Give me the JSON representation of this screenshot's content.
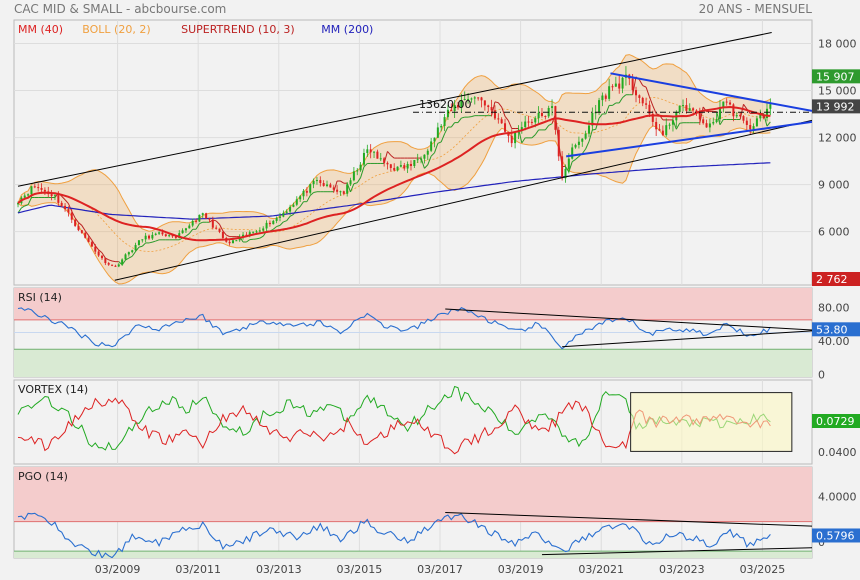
{
  "header": {
    "title": "CAC MID & SMALL - abcbourse.com",
    "period": "20 ANS - MENSUEL"
  },
  "colors": {
    "ma40": "#dd2222",
    "boll": "#f0a040",
    "supertrend": "#bb2222",
    "ma200": "#2222bb",
    "up": "#22aa22",
    "down": "#dd2222",
    "rsi": "#2a6fd0",
    "pgo": "#2a6fd0",
    "vortex_pos": "#22aa22",
    "vortex_neg": "#dd2222",
    "blue_line": "#1a3fe0",
    "price_badge_green": "#2e9a2e",
    "price_badge_gray": "#444444",
    "price_badge_red": "#cc2222",
    "zone_high": "#f4cccc",
    "zone_low": "#d9ead3"
  },
  "chart_data": [
    {
      "type": "candlestick",
      "name": "main",
      "legend": [
        {
          "label": "MM (40)",
          "color": "#dd2222"
        },
        {
          "label": "BOLL (20, 2)",
          "color": "#f0a040"
        },
        {
          "label": "SUPERTREND (10, 3)",
          "color": "#bb2222"
        },
        {
          "label": "MM (200)",
          "color": "#2222bb"
        }
      ],
      "y_ticks": [
        "18 000",
        "15 000",
        "12 000",
        "9 000",
        "6 000"
      ],
      "y_tick_values": [
        18000,
        15000,
        12000,
        9000,
        6000
      ],
      "ylim": [
        2600,
        19500
      ],
      "x_ticks": [
        "03/2009",
        "03/2011",
        "03/2013",
        "03/2015",
        "03/2017",
        "03/2019",
        "03/2021",
        "03/2023",
        "03/2025"
      ],
      "x_tick_years": [
        2009.17,
        2011.17,
        2013.17,
        2015.17,
        2017.17,
        2019.17,
        2021.17,
        2023.17,
        2025.17
      ],
      "xlim": [
        2006.6,
        2026.4
      ],
      "level_label": "13620.00",
      "level_value": 13620,
      "price_badges": [
        {
          "text": "15 907",
          "value": 15907,
          "kind": "green"
        },
        {
          "text": "13 992",
          "value": 13992,
          "kind": "gray"
        },
        {
          "text": "2 762",
          "value": 2762,
          "kind": "red"
        }
      ],
      "price_anchors": [
        [
          2006.7,
          8000
        ],
        [
          2007.1,
          8900
        ],
        [
          2007.6,
          8300
        ],
        [
          2007.9,
          7300
        ],
        [
          2008.3,
          5800
        ],
        [
          2008.8,
          4200
        ],
        [
          2009.1,
          3700
        ],
        [
          2009.3,
          4300
        ],
        [
          2009.8,
          5600
        ],
        [
          2010.3,
          5900
        ],
        [
          2010.6,
          5500
        ],
        [
          2011.0,
          6600
        ],
        [
          2011.3,
          7100
        ],
        [
          2011.6,
          6200
        ],
        [
          2011.9,
          5200
        ],
        [
          2012.3,
          5700
        ],
        [
          2012.7,
          6200
        ],
        [
          2013.2,
          7000
        ],
        [
          2013.6,
          8000
        ],
        [
          2014.1,
          9200
        ],
        [
          2014.5,
          8700
        ],
        [
          2014.8,
          8500
        ],
        [
          2015.1,
          10000
        ],
        [
          2015.4,
          11300
        ],
        [
          2015.7,
          10500
        ],
        [
          2016.1,
          10000
        ],
        [
          2016.5,
          10300
        ],
        [
          2016.9,
          11500
        ],
        [
          2017.3,
          13300
        ],
        [
          2017.6,
          14100
        ],
        [
          2017.9,
          14700
        ],
        [
          2018.2,
          14400
        ],
        [
          2018.5,
          13600
        ],
        [
          2018.8,
          12300
        ],
        [
          2018.95,
          11800
        ],
        [
          2019.2,
          12900
        ],
        [
          2019.6,
          13300
        ],
        [
          2019.95,
          13800
        ],
        [
          2020.2,
          9500
        ],
        [
          2020.4,
          11000
        ],
        [
          2020.8,
          12300
        ],
        [
          2021.0,
          13800
        ],
        [
          2021.4,
          15200
        ],
        [
          2021.8,
          15700
        ],
        [
          2022.1,
          14700
        ],
        [
          2022.4,
          13200
        ],
        [
          2022.7,
          12100
        ],
        [
          2023.0,
          13600
        ],
        [
          2023.3,
          14000
        ],
        [
          2023.6,
          13200
        ],
        [
          2023.9,
          12600
        ],
        [
          2024.2,
          14400
        ],
        [
          2024.5,
          13500
        ],
        [
          2024.8,
          12600
        ],
        [
          2025.0,
          13000
        ],
        [
          2025.4,
          13992
        ]
      ],
      "ma200_anchors": [
        [
          2006.7,
          7200
        ],
        [
          2007.5,
          7700
        ],
        [
          2009.0,
          7100
        ],
        [
          2011.0,
          6800
        ],
        [
          2013.0,
          7000
        ],
        [
          2015.0,
          7700
        ],
        [
          2017.0,
          8500
        ],
        [
          2019.0,
          9200
        ],
        [
          2021.0,
          9700
        ],
        [
          2023.0,
          10100
        ],
        [
          2025.4,
          10400
        ]
      ],
      "trend_lines": [
        {
          "color": "#000000",
          "points": [
            [
              2006.7,
              8900
            ],
            [
              2025.4,
              18700
            ]
          ]
        },
        {
          "color": "#000000",
          "points": [
            [
              2009.1,
              2900
            ],
            [
              2026.4,
              13100
            ]
          ]
        },
        {
          "color": "#1a3fe0",
          "points": [
            [
              2021.4,
              16100
            ],
            [
              2026.4,
              13700
            ]
          ]
        },
        {
          "color": "#1a3fe0",
          "points": [
            [
              2020.3,
              10800
            ],
            [
              2026.4,
              13000
            ]
          ]
        }
      ]
    },
    {
      "type": "line",
      "name": "rsi",
      "label": "RSI (14)",
      "y_ticks": [
        "80.00",
        "40.00",
        "0"
      ],
      "y_tick_values": [
        80,
        40,
        0
      ],
      "ylim": [
        -3,
        103
      ],
      "zone_high": 65,
      "zone_low": 30,
      "current_badge": "53.80",
      "current_value": 53.8,
      "anchors": [
        [
          2006.7,
          80
        ],
        [
          2007.3,
          70
        ],
        [
          2008.0,
          55
        ],
        [
          2008.6,
          38
        ],
        [
          2009.1,
          34
        ],
        [
          2009.6,
          58
        ],
        [
          2010.2,
          55
        ],
        [
          2010.8,
          65
        ],
        [
          2011.3,
          69
        ],
        [
          2011.8,
          48
        ],
        [
          2012.4,
          58
        ],
        [
          2013.0,
          64
        ],
        [
          2013.6,
          58
        ],
        [
          2014.2,
          62
        ],
        [
          2014.7,
          50
        ],
        [
          2015.3,
          72
        ],
        [
          2015.8,
          58
        ],
        [
          2016.4,
          52
        ],
        [
          2016.9,
          64
        ],
        [
          2017.5,
          78
        ],
        [
          2017.9,
          75
        ],
        [
          2018.5,
          62
        ],
        [
          2019.0,
          50
        ],
        [
          2019.6,
          60
        ],
        [
          2020.2,
          33
        ],
        [
          2020.7,
          50
        ],
        [
          2021.3,
          62
        ],
        [
          2021.8,
          66
        ],
        [
          2022.4,
          48
        ],
        [
          2022.9,
          55
        ],
        [
          2023.4,
          52
        ],
        [
          2023.9,
          48
        ],
        [
          2024.3,
          60
        ],
        [
          2024.8,
          48
        ],
        [
          2025.4,
          53.8
        ]
      ],
      "trend_lines": [
        {
          "points": [
            [
              2017.3,
              78
            ],
            [
              2026.4,
              53
            ]
          ]
        },
        {
          "points": [
            [
              2020.2,
              33
            ],
            [
              2026.4,
              52
            ]
          ]
        }
      ]
    },
    {
      "type": "line",
      "name": "vortex",
      "label": "VORTEX (14)",
      "y_ticks": [
        "0.0400"
      ],
      "y_tick_values": [
        0.04
      ],
      "ylim": [
        0,
        1
      ],
      "current_badge": "0.0729",
      "current_value": 0.0729,
      "pos_anchors": [
        [
          2006.7,
          0.62
        ],
        [
          2007.4,
          0.8
        ],
        [
          2008.0,
          0.55
        ],
        [
          2008.6,
          0.22
        ],
        [
          2009.2,
          0.22
        ],
        [
          2009.8,
          0.6
        ],
        [
          2010.4,
          0.76
        ],
        [
          2010.9,
          0.66
        ],
        [
          2011.3,
          0.78
        ],
        [
          2011.8,
          0.48
        ],
        [
          2012.3,
          0.38
        ],
        [
          2012.8,
          0.58
        ],
        [
          2013.4,
          0.72
        ],
        [
          2013.9,
          0.62
        ],
        [
          2014.4,
          0.7
        ],
        [
          2014.9,
          0.52
        ],
        [
          2015.4,
          0.8
        ],
        [
          2015.9,
          0.6
        ],
        [
          2016.4,
          0.45
        ],
        [
          2016.9,
          0.66
        ],
        [
          2017.5,
          0.88
        ],
        [
          2018.0,
          0.74
        ],
        [
          2018.6,
          0.56
        ],
        [
          2019.0,
          0.34
        ],
        [
          2019.5,
          0.56
        ],
        [
          2019.9,
          0.6
        ],
        [
          2020.3,
          0.32
        ],
        [
          2020.7,
          0.22
        ],
        [
          2021.3,
          0.9
        ],
        [
          2021.8,
          0.82
        ],
        [
          2022.0,
          0.4
        ],
        [
          2022.5,
          0.52
        ],
        [
          2023.0,
          0.48
        ],
        [
          2023.6,
          0.5
        ],
        [
          2024.2,
          0.46
        ],
        [
          2024.8,
          0.52
        ],
        [
          2025.4,
          0.56
        ]
      ],
      "neg_anchors": [
        [
          2006.7,
          0.36
        ],
        [
          2007.4,
          0.2
        ],
        [
          2008.0,
          0.48
        ],
        [
          2008.6,
          0.76
        ],
        [
          2009.2,
          0.74
        ],
        [
          2009.8,
          0.4
        ],
        [
          2010.4,
          0.28
        ],
        [
          2010.9,
          0.38
        ],
        [
          2011.3,
          0.24
        ],
        [
          2011.8,
          0.56
        ],
        [
          2012.3,
          0.64
        ],
        [
          2012.8,
          0.44
        ],
        [
          2013.4,
          0.3
        ],
        [
          2013.9,
          0.38
        ],
        [
          2014.4,
          0.3
        ],
        [
          2014.9,
          0.5
        ],
        [
          2015.4,
          0.22
        ],
        [
          2015.9,
          0.4
        ],
        [
          2016.4,
          0.56
        ],
        [
          2016.9,
          0.36
        ],
        [
          2017.5,
          0.18
        ],
        [
          2018.0,
          0.28
        ],
        [
          2018.6,
          0.46
        ],
        [
          2019.0,
          0.66
        ],
        [
          2019.5,
          0.46
        ],
        [
          2019.9,
          0.44
        ],
        [
          2020.3,
          0.66
        ],
        [
          2020.7,
          0.7
        ],
        [
          2021.3,
          0.2
        ],
        [
          2021.8,
          0.26
        ],
        [
          2022.0,
          0.6
        ],
        [
          2022.5,
          0.48
        ],
        [
          2023.0,
          0.54
        ],
        [
          2023.6,
          0.52
        ],
        [
          2024.2,
          0.56
        ],
        [
          2024.8,
          0.5
        ],
        [
          2025.4,
          0.46
        ]
      ],
      "highlight_box": {
        "x": [
          2021.9,
          2025.9
        ],
        "y": [
          0.15,
          0.85
        ]
      }
    },
    {
      "type": "line",
      "name": "pgo",
      "label": "PGO (14)",
      "y_ticks": [
        "4.0000",
        "0"
      ],
      "y_tick_values": [
        4,
        0
      ],
      "ylim": [
        -1.4,
        6.6
      ],
      "zone_high": 1.8,
      "zone_low": -0.8,
      "current_badge": "0.5796",
      "current_value": 0.5796,
      "anchors": [
        [
          2006.7,
          2.0
        ],
        [
          2007.3,
          2.6
        ],
        [
          2008.0,
          0.0
        ],
        [
          2008.6,
          -1.0
        ],
        [
          2009.1,
          -1.2
        ],
        [
          2009.6,
          0.6
        ],
        [
          2010.2,
          0.0
        ],
        [
          2010.8,
          1.2
        ],
        [
          2011.3,
          1.6
        ],
        [
          2011.8,
          -0.6
        ],
        [
          2012.4,
          0.3
        ],
        [
          2013.0,
          1.2
        ],
        [
          2013.6,
          0.4
        ],
        [
          2014.2,
          1.4
        ],
        [
          2014.7,
          0.2
        ],
        [
          2015.3,
          1.8
        ],
        [
          2015.8,
          0.8
        ],
        [
          2016.4,
          0.2
        ],
        [
          2016.9,
          1.4
        ],
        [
          2017.5,
          2.4
        ],
        [
          2017.9,
          2.0
        ],
        [
          2018.5,
          0.8
        ],
        [
          2019.0,
          -0.2
        ],
        [
          2019.6,
          0.8
        ],
        [
          2020.2,
          -1.0
        ],
        [
          2020.7,
          0.4
        ],
        [
          2021.3,
          1.2
        ],
        [
          2021.8,
          1.6
        ],
        [
          2022.4,
          -0.2
        ],
        [
          2022.9,
          0.6
        ],
        [
          2023.4,
          0.4
        ],
        [
          2023.9,
          -0.2
        ],
        [
          2024.3,
          1.0
        ],
        [
          2024.8,
          -0.2
        ],
        [
          2025.4,
          0.58
        ]
      ],
      "trend_lines": [
        {
          "points": [
            [
              2017.3,
              2.6
            ],
            [
              2026.4,
              1.4
            ]
          ]
        },
        {
          "points": [
            [
              2019.7,
              -1.1
            ],
            [
              2026.4,
              -0.5
            ]
          ]
        }
      ]
    }
  ]
}
